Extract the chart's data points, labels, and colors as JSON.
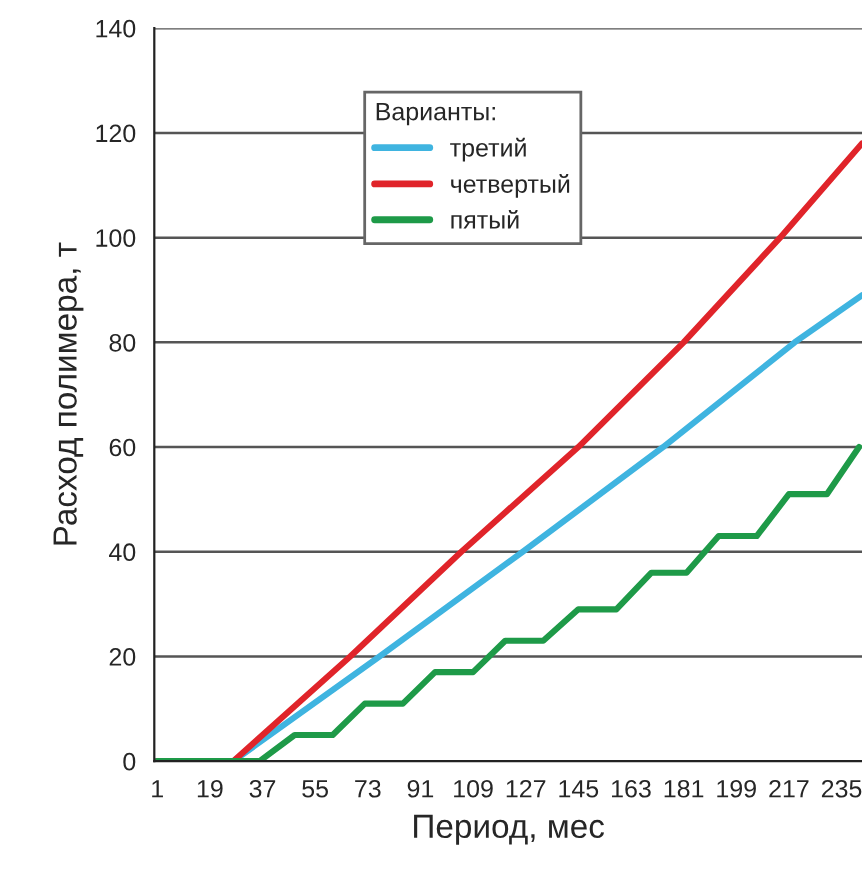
{
  "chart_data": {
    "type": "line",
    "xlabel": "Период, мес",
    "ylabel": "Расход полимера, т",
    "legend_title": "Варианты:",
    "xlim": [
      0,
      242
    ],
    "xticks": [
      1,
      19,
      37,
      55,
      73,
      91,
      109,
      127,
      145,
      163,
      181,
      199,
      217,
      235
    ],
    "ylim": [
      0,
      140
    ],
    "yticks": [
      0,
      20,
      40,
      60,
      80,
      100,
      120,
      140
    ],
    "grid": "y",
    "legend": "top",
    "line_style": "solid",
    "marker": "none",
    "series": [
      {
        "name": "третий",
        "color": "#3fb4e0",
        "x": [
          1,
          27,
          77,
          126,
          174,
          219,
          242
        ],
        "values": [
          0,
          0,
          20,
          40,
          60,
          80,
          89
        ]
      },
      {
        "name": "четвертый",
        "color": "#e0242a",
        "x": [
          1,
          27,
          67,
          105,
          145,
          181,
          214,
          242
        ],
        "values": [
          0,
          0,
          20,
          40,
          60,
          80,
          100,
          118
        ]
      },
      {
        "name": "пятый",
        "color": "#1e9a48",
        "x": [
          1,
          36,
          48,
          61,
          72,
          85,
          96,
          109,
          120,
          133,
          145,
          158,
          170,
          182,
          193,
          206,
          217,
          230,
          241
        ],
        "values": [
          0,
          0,
          5,
          5,
          11,
          11,
          17,
          17,
          23,
          23,
          29,
          29,
          36,
          36,
          43,
          43,
          51,
          51,
          60
        ]
      }
    ]
  }
}
